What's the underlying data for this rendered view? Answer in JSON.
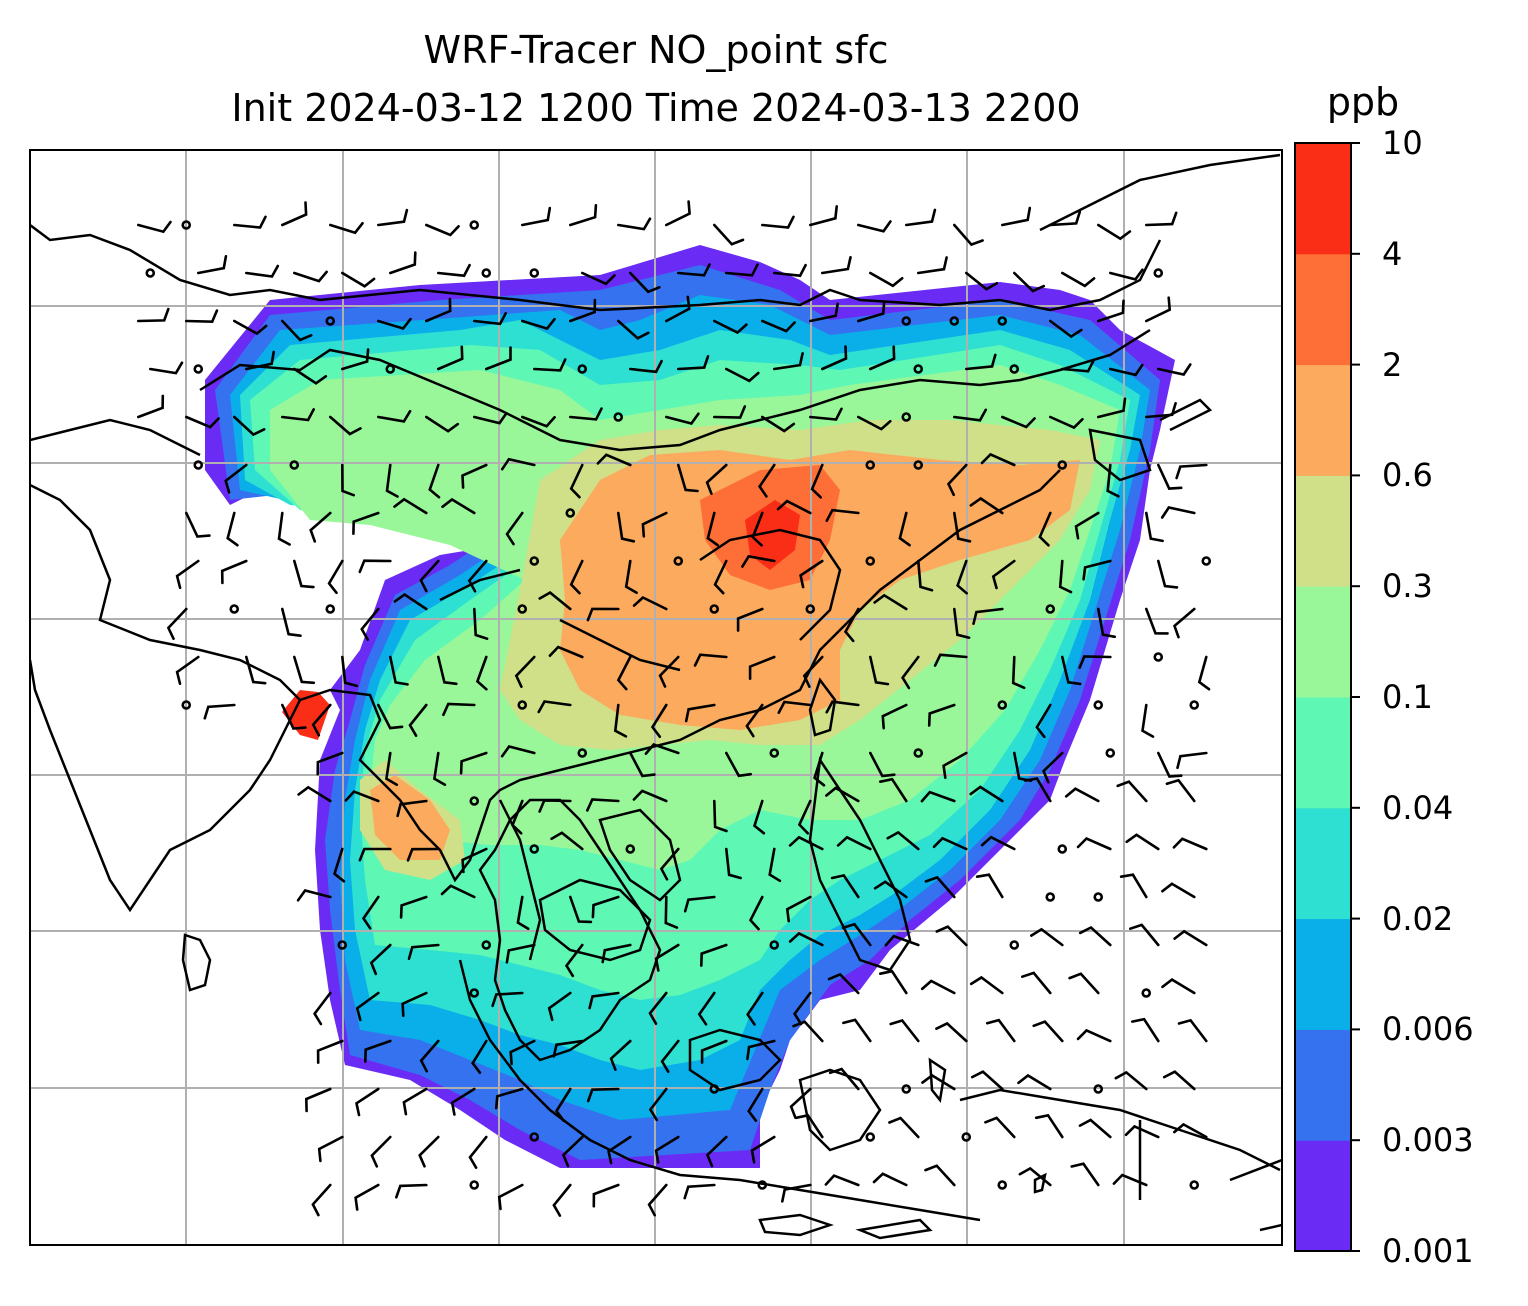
{
  "title": {
    "line1": "WRF-Tracer NO_point sfc",
    "line2": "Init 2024-03-12 1200 Time 2024-03-13 2200"
  },
  "colorbar": {
    "unit": "ppb",
    "levels": [
      "0.001",
      "0.003",
      "0.006",
      "0.02",
      "0.04",
      "0.1",
      "0.3",
      "0.6",
      "2",
      "4",
      "10"
    ],
    "colors": [
      "#6a2bf5",
      "#3572ef",
      "#0aaee9",
      "#2ee0d2",
      "#5ff7b4",
      "#99f79a",
      "#cfe088",
      "#fbaa5e",
      "#fe6e37",
      "#fa2e17"
    ]
  },
  "map": {
    "gridlines": true,
    "wind_barbs": true,
    "coastlines": true,
    "field": "NO_point"
  }
}
